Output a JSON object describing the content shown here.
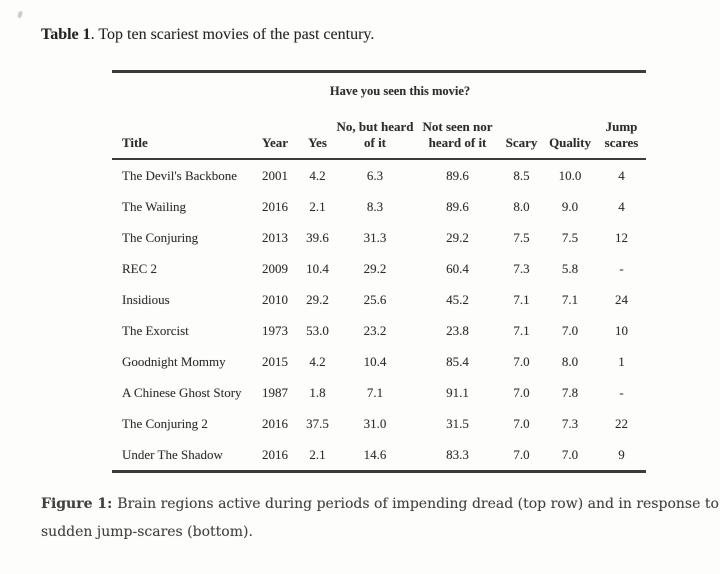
{
  "document": {
    "table_caption": {
      "label": "Table 1",
      "text": ". Top ten scariest movies of the past century."
    },
    "figure_caption": {
      "label": "Figure 1:",
      "line1": "Brain regions active during periods of impending dread (top row) and in response to",
      "line2": "sudden jump-scares (bottom)."
    }
  },
  "table": {
    "span_header": "Have you seen this movie?",
    "columns": [
      "Title",
      "Year",
      "Yes",
      "No, but heard of it",
      "Not seen nor heard of it",
      "Scary",
      "Quality",
      "Jump scares"
    ],
    "rows": [
      [
        "The Devil's Backbone",
        "2001",
        "4.2",
        "6.3",
        "89.6",
        "8.5",
        "10.0",
        "4"
      ],
      [
        "The Wailing",
        "2016",
        "2.1",
        "8.3",
        "89.6",
        "8.0",
        "9.0",
        "4"
      ],
      [
        "The Conjuring",
        "2013",
        "39.6",
        "31.3",
        "29.2",
        "7.5",
        "7.5",
        "12"
      ],
      [
        "REC 2",
        "2009",
        "10.4",
        "29.2",
        "60.4",
        "7.3",
        "5.8",
        "-"
      ],
      [
        "Insidious",
        "2010",
        "29.2",
        "25.6",
        "45.2",
        "7.1",
        "7.1",
        "24"
      ],
      [
        "The Exorcist",
        "1973",
        "53.0",
        "23.2",
        "23.8",
        "7.1",
        "7.0",
        "10"
      ],
      [
        "Goodnight Mommy",
        "2015",
        "4.2",
        "10.4",
        "85.4",
        "7.0",
        "8.0",
        "1"
      ],
      [
        "A Chinese Ghost Story",
        "1987",
        "1.8",
        "7.1",
        "91.1",
        "7.0",
        "7.8",
        "-"
      ],
      [
        "The Conjuring 2",
        "2016",
        "37.5",
        "31.0",
        "31.5",
        "7.0",
        "7.3",
        "22"
      ],
      [
        "Under The Shadow",
        "2016",
        "2.1",
        "14.6",
        "83.3",
        "7.0",
        "7.0",
        "9"
      ]
    ]
  },
  "colors": {
    "background": "#fdfdfc",
    "text": "#2d2d2d",
    "rule": "#3b3b3b"
  }
}
